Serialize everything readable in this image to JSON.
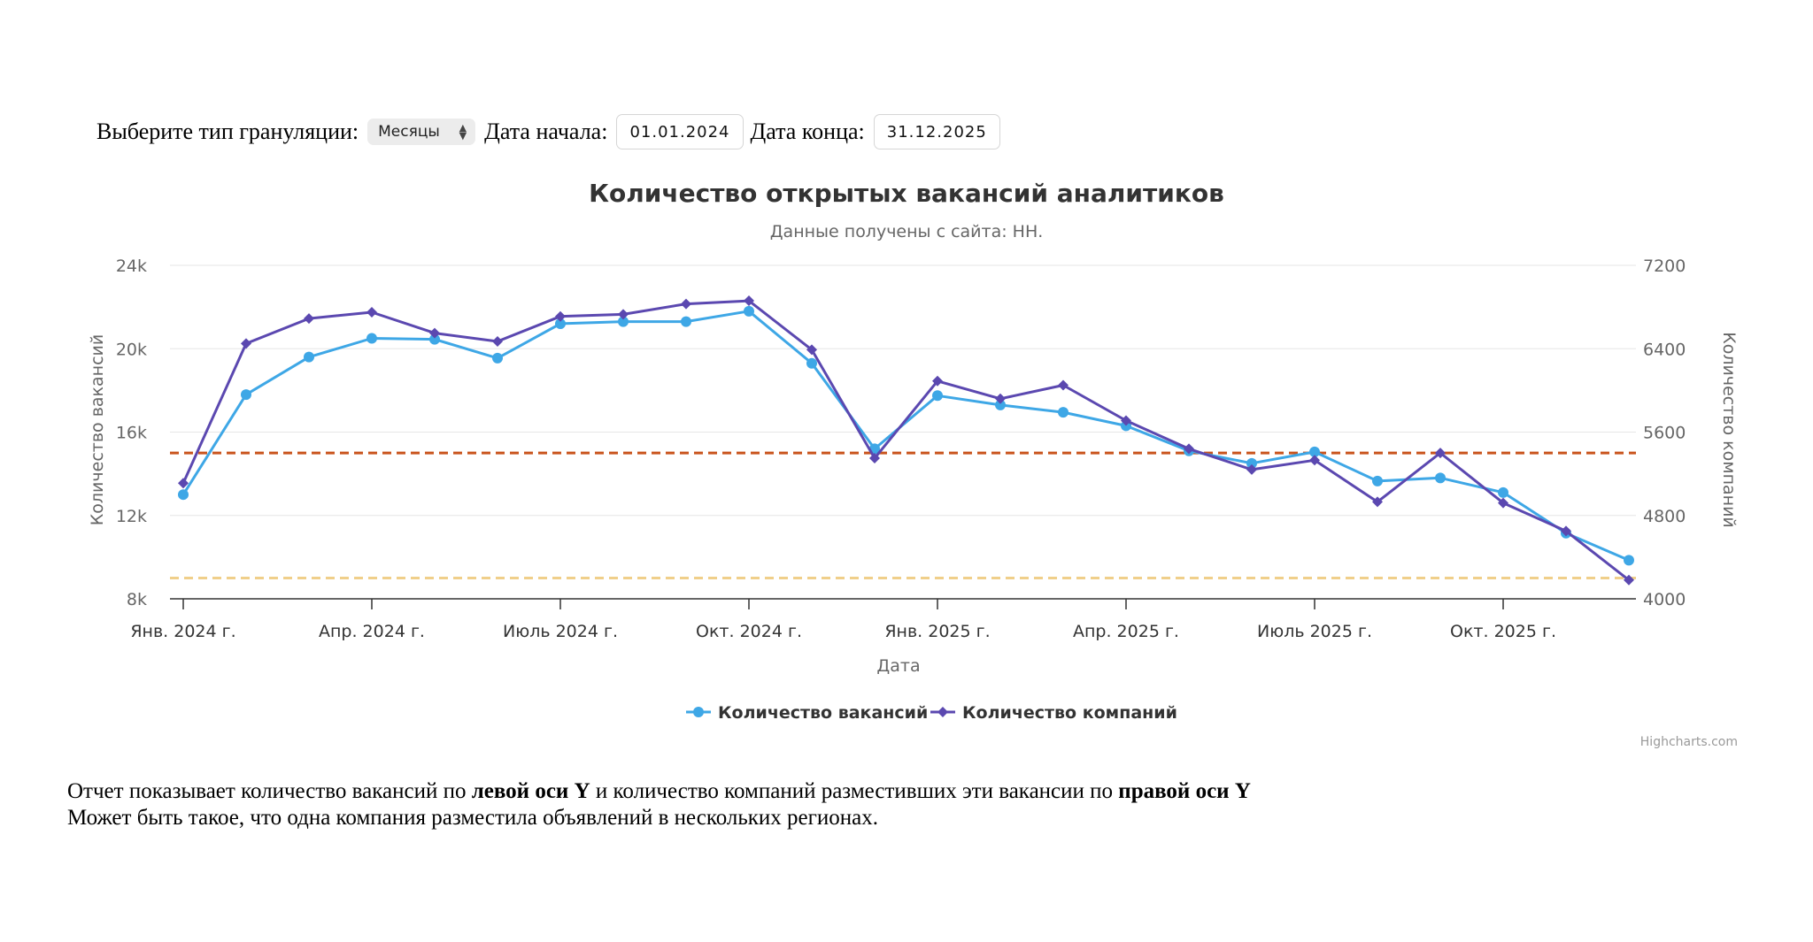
{
  "controls": {
    "granulation_label": "Выберите тип грануляции:",
    "granulation_value": "Месяцы",
    "start_label": "Дата начала:",
    "start_value": "01.01.2024",
    "end_label": "Дата конца:",
    "end_value": "31.12.2025"
  },
  "chart_data": {
    "type": "line",
    "title": "Количество открытых вакансий аналитиков",
    "subtitle": "Данные получены с сайта: НН.",
    "xlabel": "Дата",
    "ylabel_left": "Количество вакансий",
    "ylabel_right": "Количество компаний",
    "credits": "Highcharts.com",
    "x": [
      "2024-01",
      "2024-02",
      "2024-03",
      "2024-04",
      "2024-05",
      "2024-06",
      "2024-07",
      "2024-08",
      "2024-09",
      "2024-10",
      "2024-11",
      "2024-12",
      "2025-01",
      "2025-02",
      "2025-03",
      "2025-04",
      "2025-05",
      "2025-06",
      "2025-07",
      "2025-08",
      "2025-09",
      "2025-10",
      "2025-11",
      "2025-12"
    ],
    "x_ticks": [
      {
        "x": "2024-01",
        "label": "Янв. 2024 г."
      },
      {
        "x": "2024-04",
        "label": "Апр. 2024 г."
      },
      {
        "x": "2024-07",
        "label": "Июль 2024 г."
      },
      {
        "x": "2024-10",
        "label": "Окт. 2024 г."
      },
      {
        "x": "2025-01",
        "label": "Янв. 2025 г."
      },
      {
        "x": "2025-04",
        "label": "Апр. 2025 г."
      },
      {
        "x": "2025-07",
        "label": "Июль 2025 г."
      },
      {
        "x": "2025-10",
        "label": "Окт. 2025 г."
      }
    ],
    "y_left": {
      "min": 8000,
      "max": 24000,
      "ticks": [
        8000,
        12000,
        16000,
        20000,
        24000
      ],
      "tick_labels": [
        "8k",
        "12k",
        "16k",
        "20k",
        "24k"
      ]
    },
    "y_right": {
      "min": 4000,
      "max": 7200,
      "ticks": [
        4000,
        4800,
        5600,
        6400,
        7200
      ],
      "tick_labels": [
        "4000",
        "4800",
        "5600",
        "6400",
        "7200"
      ]
    },
    "grid": true,
    "legend_position": "bottom-center",
    "series": [
      {
        "name": "Количество вакансий",
        "axis": "left",
        "color": "#3ea7e6",
        "marker": "circle",
        "values": [
          13000,
          17800,
          19600,
          20500,
          20450,
          19550,
          21200,
          21300,
          21300,
          21800,
          19300,
          15200,
          17750,
          17300,
          16950,
          16300,
          15100,
          14500,
          15050,
          13650,
          13800,
          13100,
          11150,
          9850
        ]
      },
      {
        "name": "Количество компаний",
        "axis": "right",
        "color": "#5b48b0",
        "marker": "diamond",
        "values": [
          5110,
          6450,
          6690,
          6750,
          6550,
          6470,
          6710,
          6730,
          6830,
          6860,
          6390,
          5350,
          6090,
          5920,
          6050,
          5710,
          5440,
          5240,
          5330,
          4930,
          5400,
          4920,
          4650,
          4180
        ]
      }
    ],
    "plot_lines": [
      {
        "axis": "left",
        "value": 15000,
        "color": "#c9541d",
        "style": "dashed"
      },
      {
        "axis": "left",
        "value": 9000,
        "color": "#f0cf8a",
        "style": "dashed"
      }
    ]
  },
  "note": {
    "line1_a": "Отчет показывает количество вакансий по ",
    "line1_b": "левой оси Y",
    "line1_c": " и количество компаний разместивших эти вакансии по ",
    "line1_d": "правой оси Y",
    "line2": "Может быть такое, что одна компания разместила объявлений в нескольких регионах."
  }
}
